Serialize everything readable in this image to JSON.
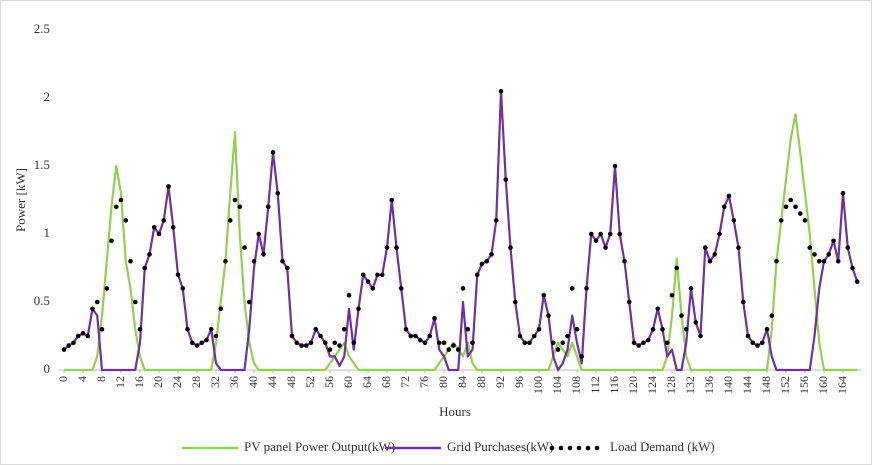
{
  "chart_data": {
    "type": "line",
    "x_label": "Hours",
    "y_label": "Power [kW]",
    "xlim": [
      0,
      168
    ],
    "ylim": [
      0,
      2.5
    ],
    "xticks": [
      0,
      4,
      8,
      12,
      16,
      20,
      24,
      28,
      32,
      36,
      40,
      44,
      48,
      52,
      56,
      60,
      64,
      68,
      72,
      76,
      80,
      84,
      88,
      92,
      96,
      100,
      104,
      108,
      112,
      116,
      120,
      124,
      128,
      132,
      136,
      140,
      144,
      148,
      152,
      156,
      160,
      164
    ],
    "yticks": [
      0,
      0.5,
      1,
      1.5,
      2,
      2.5
    ],
    "grid": false,
    "legend": "bottom",
    "x": [
      0,
      1,
      2,
      3,
      4,
      5,
      6,
      7,
      8,
      9,
      10,
      11,
      12,
      13,
      14,
      15,
      16,
      17,
      18,
      19,
      20,
      21,
      22,
      23,
      24,
      25,
      26,
      27,
      28,
      29,
      30,
      31,
      32,
      33,
      34,
      35,
      36,
      37,
      38,
      39,
      40,
      41,
      42,
      43,
      44,
      45,
      46,
      47,
      48,
      49,
      50,
      51,
      52,
      53,
      54,
      55,
      56,
      57,
      58,
      59,
      60,
      61,
      62,
      63,
      64,
      65,
      66,
      67,
      68,
      69,
      70,
      71,
      72,
      73,
      74,
      75,
      76,
      77,
      78,
      79,
      80,
      81,
      82,
      83,
      84,
      85,
      86,
      87,
      88,
      89,
      90,
      91,
      92,
      93,
      94,
      95,
      96,
      97,
      98,
      99,
      100,
      101,
      102,
      103,
      104,
      105,
      106,
      107,
      108,
      109,
      110,
      111,
      112,
      113,
      114,
      115,
      116,
      117,
      118,
      119,
      120,
      121,
      122,
      123,
      124,
      125,
      126,
      127,
      128,
      129,
      130,
      131,
      132,
      133,
      134,
      135,
      136,
      137,
      138,
      139,
      140,
      141,
      142,
      143,
      144,
      145,
      146,
      147,
      148,
      149,
      150,
      151,
      152,
      153,
      154,
      155,
      156,
      157,
      158,
      159,
      160,
      161,
      162,
      163,
      164,
      165,
      166,
      167
    ],
    "series": [
      {
        "name": "PV panel Power Output(kW)",
        "color": "#92d050",
        "style": "line",
        "values": [
          0,
          0,
          0,
          0,
          0,
          0,
          0,
          0.1,
          0.4,
          0.8,
          1.2,
          1.5,
          1.3,
          0.8,
          0.6,
          0.3,
          0.1,
          0,
          0,
          0,
          0,
          0,
          0,
          0,
          0,
          0,
          0,
          0,
          0,
          0,
          0,
          0,
          0.2,
          0.5,
          0.8,
          1.3,
          1.75,
          1.0,
          0.5,
          0.2,
          0.05,
          0,
          0,
          0,
          0,
          0,
          0,
          0,
          0,
          0,
          0,
          0,
          0,
          0,
          0,
          0,
          0.05,
          0.1,
          0.15,
          0.2,
          0.1,
          0.05,
          0,
          0,
          0,
          0,
          0,
          0,
          0,
          0,
          0,
          0,
          0,
          0,
          0,
          0,
          0,
          0,
          0,
          0.05,
          0.1,
          0.15,
          0.2,
          0.15,
          0.1,
          0.2,
          0.05,
          0,
          0,
          0,
          0,
          0,
          0,
          0,
          0,
          0,
          0,
          0,
          0,
          0,
          0,
          0,
          0,
          0.1,
          0.2,
          0.15,
          0.1,
          0.2,
          0.1,
          0,
          0,
          0,
          0,
          0,
          0,
          0,
          0,
          0,
          0,
          0,
          0,
          0,
          0,
          0,
          0,
          0,
          0,
          0.1,
          0.4,
          0.82,
          0.4,
          0.1,
          0,
          0,
          0,
          0,
          0,
          0,
          0,
          0,
          0,
          0,
          0,
          0,
          0,
          0,
          0,
          0,
          0,
          0.3,
          0.8,
          1.1,
          1.4,
          1.7,
          1.88,
          1.6,
          1.3,
          1.0,
          0.6,
          0.2,
          0,
          0,
          0,
          0,
          0,
          0,
          0,
          0
        ]
      },
      {
        "name": "Grid Purchases(kW)",
        "color": "#7030a0",
        "style": "line",
        "values": [
          0.15,
          0.18,
          0.2,
          0.25,
          0.27,
          0.25,
          0.45,
          0.4,
          0,
          0,
          0,
          0,
          0,
          0,
          0,
          0,
          0.2,
          0.75,
          0.85,
          1.05,
          1.0,
          1.1,
          1.35,
          1.05,
          0.7,
          0.6,
          0.3,
          0.2,
          0.18,
          0.2,
          0.22,
          0.3,
          0.05,
          0,
          0,
          0,
          0,
          0,
          0,
          0.3,
          0.75,
          1.0,
          0.85,
          1.2,
          1.6,
          1.3,
          0.8,
          0.75,
          0.25,
          0.2,
          0.18,
          0.18,
          0.2,
          0.3,
          0.25,
          0.2,
          0.1,
          0.1,
          0.03,
          0.1,
          0.45,
          0.15,
          0.45,
          0.7,
          0.65,
          0.6,
          0.7,
          0.7,
          0.9,
          1.25,
          0.9,
          0.6,
          0.3,
          0.25,
          0.25,
          0.22,
          0.2,
          0.25,
          0.38,
          0.15,
          0.1,
          0,
          0,
          0,
          0.5,
          0.1,
          0.15,
          0.7,
          0.78,
          0.8,
          0.85,
          1.1,
          2.05,
          1.4,
          0.9,
          0.5,
          0.25,
          0.2,
          0.2,
          0.25,
          0.3,
          0.55,
          0.4,
          0.1,
          0,
          0.05,
          0.15,
          0.4,
          0.2,
          0.05,
          0.6,
          1.0,
          0.95,
          1.0,
          0.9,
          1.0,
          1.5,
          1.0,
          0.8,
          0.5,
          0.2,
          0.18,
          0.2,
          0.22,
          0.3,
          0.45,
          0.3,
          0.1,
          0.15,
          0,
          0,
          0.2,
          0.6,
          0.35,
          0.25,
          0.9,
          0.8,
          0.85,
          1.0,
          1.2,
          1.28,
          1.1,
          0.9,
          0.5,
          0.25,
          0.2,
          0.18,
          0.2,
          0.3,
          0.1,
          0,
          0,
          0,
          0,
          0,
          0,
          0,
          0,
          0.25,
          0.6,
          0.8,
          0.85,
          0.95,
          0.8,
          1.3,
          0.9,
          0.75,
          0.65
        ]
      },
      {
        "name": "Load Demand (kW)",
        "color": "#000000",
        "style": "dots",
        "values": [
          0.15,
          0.18,
          0.2,
          0.25,
          0.27,
          0.25,
          0.45,
          0.5,
          0.3,
          0.6,
          0.95,
          1.2,
          1.25,
          1.1,
          0.8,
          0.5,
          0.3,
          0.75,
          0.85,
          1.05,
          1.0,
          1.1,
          1.35,
          1.05,
          0.7,
          0.6,
          0.3,
          0.2,
          0.18,
          0.2,
          0.22,
          0.3,
          0.25,
          0.45,
          0.8,
          1.1,
          1.25,
          1.2,
          0.9,
          0.5,
          0.8,
          1.0,
          0.85,
          1.2,
          1.6,
          1.3,
          0.8,
          0.75,
          0.25,
          0.2,
          0.18,
          0.18,
          0.2,
          0.3,
          0.25,
          0.2,
          0.15,
          0.2,
          0.18,
          0.3,
          0.55,
          0.2,
          0.45,
          0.7,
          0.65,
          0.6,
          0.7,
          0.7,
          0.9,
          1.25,
          0.9,
          0.6,
          0.3,
          0.25,
          0.25,
          0.22,
          0.2,
          0.25,
          0.38,
          0.2,
          0.2,
          0.15,
          0.18,
          0.15,
          0.6,
          0.3,
          0.2,
          0.7,
          0.78,
          0.8,
          0.85,
          1.1,
          2.05,
          1.4,
          0.9,
          0.5,
          0.25,
          0.2,
          0.2,
          0.25,
          0.3,
          0.55,
          0.4,
          0.2,
          0.15,
          0.2,
          0.25,
          0.6,
          0.3,
          0.1,
          0.6,
          1.0,
          0.95,
          1.0,
          0.9,
          1.0,
          1.5,
          1.0,
          0.8,
          0.5,
          0.2,
          0.18,
          0.2,
          0.22,
          0.3,
          0.45,
          0.3,
          0.2,
          0.55,
          0.75,
          0.4,
          0.3,
          0.6,
          0.35,
          0.25,
          0.9,
          0.8,
          0.85,
          1.0,
          1.2,
          1.28,
          1.1,
          0.9,
          0.5,
          0.25,
          0.2,
          0.18,
          0.2,
          0.3,
          0.4,
          0.8,
          1.1,
          1.2,
          1.25,
          1.2,
          1.15,
          1.1,
          0.9,
          0.85,
          0.8,
          0.8,
          0.85,
          0.95,
          0.8,
          1.3,
          0.9,
          0.75,
          0.65
        ]
      }
    ]
  }
}
